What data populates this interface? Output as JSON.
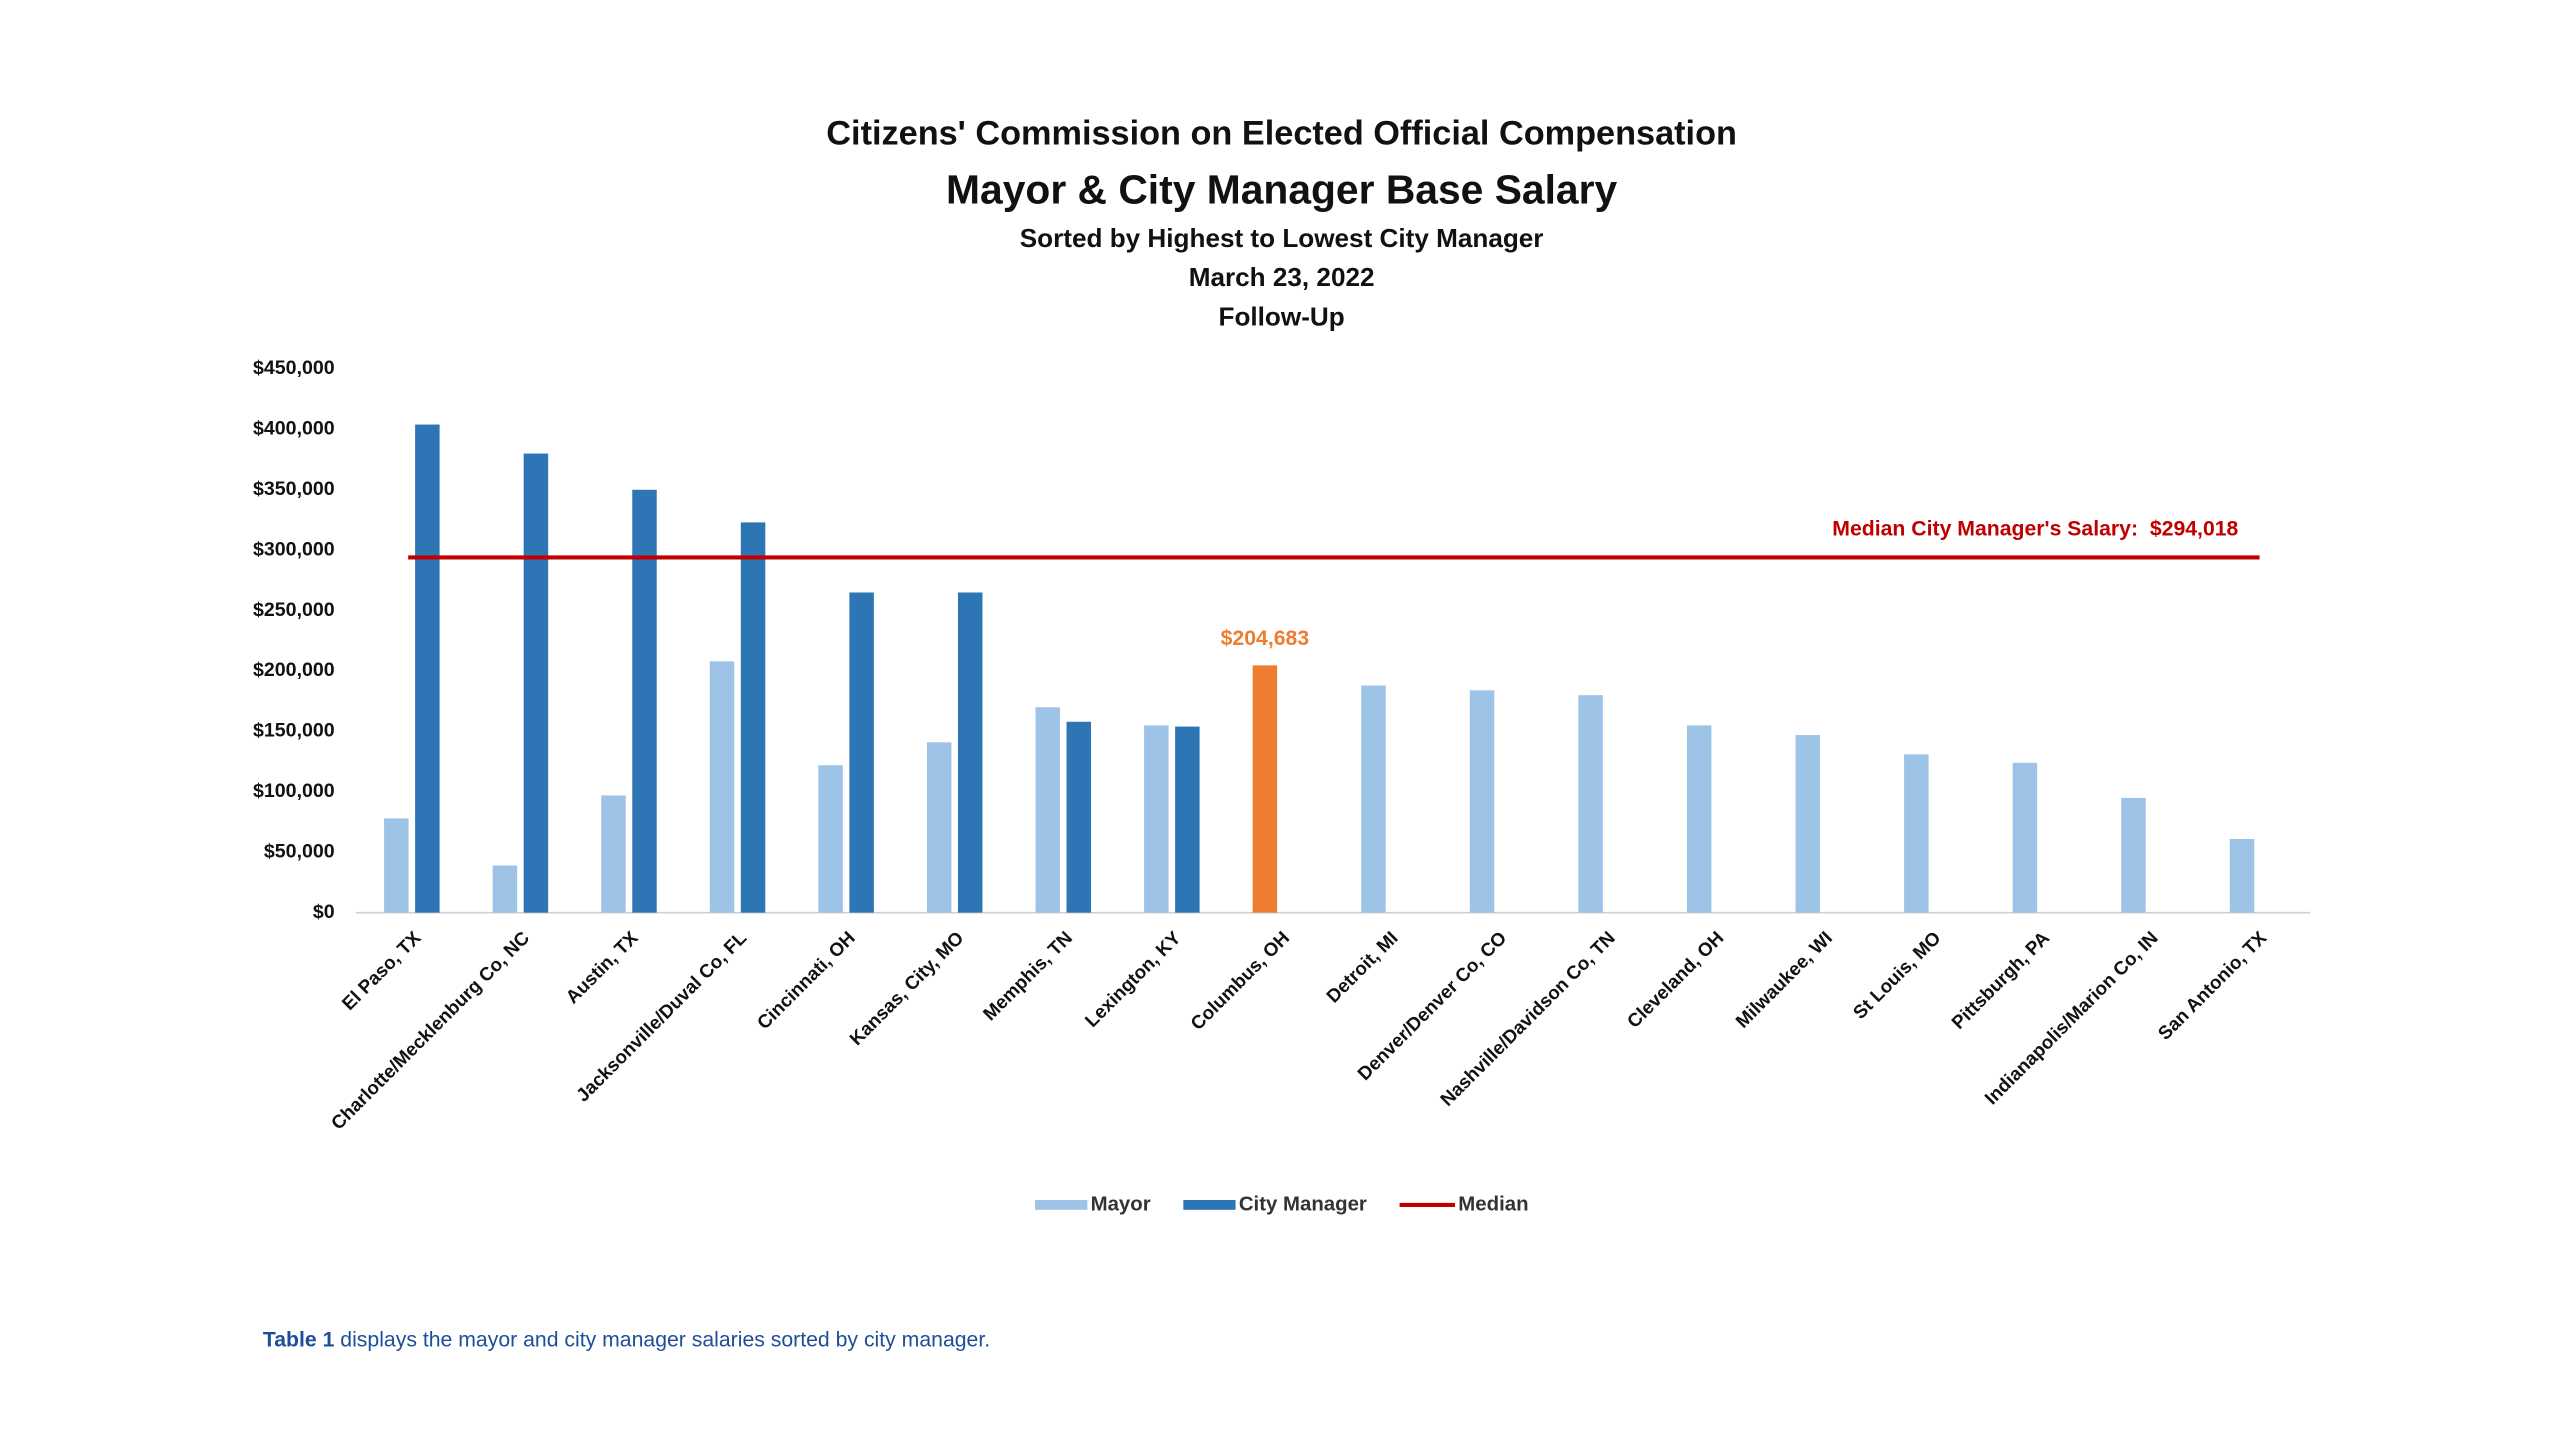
{
  "chart_data": {
    "type": "bar",
    "title": "Citizens' Commission on Elected Official Compensation",
    "subtitle": "Mayor & City Manager Base Salary",
    "notes": [
      "Sorted by Highest to Lowest City Manager",
      "March 23, 2022",
      "Follow-Up"
    ],
    "categories": [
      "El Paso, TX",
      "Charlotte/Mecklenburg Co, NC",
      "Austin, TX",
      "Jacksonville/Duval Co, FL",
      "Cincinnati, OH",
      "Kansas, City, MO",
      "Memphis, TN",
      "Lexington, KY",
      "Columbus, OH",
      "Detroit, MI",
      "Denver/Denver Co, CO",
      "Nashville/Davidson Co, TN",
      "Cleveland, OH",
      "Milwaukee, WI",
      "St Louis, MO",
      "Pittsburgh, PA",
      "Indianapolis/Marion Co, IN",
      "San Antonio, TX"
    ],
    "series": [
      {
        "name": "Mayor",
        "color": "#9dc3e6",
        "values": [
          78000,
          39000,
          97000,
          208000,
          122000,
          141000,
          170000,
          155000,
          204683,
          188000,
          184000,
          180000,
          155000,
          147000,
          131000,
          124000,
          95000,
          61000
        ],
        "value_labels": [
          null,
          null,
          null,
          null,
          null,
          null,
          null,
          null,
          "$204,683",
          null,
          null,
          null,
          null,
          null,
          null,
          null,
          null,
          null
        ],
        "highlight": {
          "index": 8,
          "color": "#ed7d31"
        }
      },
      {
        "name": "City Manager",
        "color": "#2e75b6",
        "values": [
          404000,
          380000,
          350000,
          323000,
          265000,
          265000,
          158000,
          154000,
          null,
          null,
          null,
          null,
          null,
          null,
          null,
          null,
          null,
          null
        ]
      }
    ],
    "median": {
      "name": "Median",
      "color": "#c00000",
      "value": 294018,
      "label": "Median City Manager's Salary:",
      "value_label": "$294,018"
    },
    "ylim": [
      0,
      450000
    ],
    "yticks": [
      {
        "value": 0,
        "label": "$0"
      },
      {
        "value": 50000,
        "label": "$50,000"
      },
      {
        "value": 100000,
        "label": "$100,000"
      },
      {
        "value": 150000,
        "label": "$150,000"
      },
      {
        "value": 200000,
        "label": "$200,000"
      },
      {
        "value": 250000,
        "label": "$250,000"
      },
      {
        "value": 300000,
        "label": "$300,000"
      },
      {
        "value": 350000,
        "label": "$350,000"
      },
      {
        "value": 400000,
        "label": "$400,000"
      },
      {
        "value": 450000,
        "label": "$450,000"
      }
    ],
    "grid": false,
    "legend": "bottom"
  },
  "caption": {
    "bold": "Table 1",
    "text": "displays the mayor and city manager salaries sorted by city manager."
  }
}
